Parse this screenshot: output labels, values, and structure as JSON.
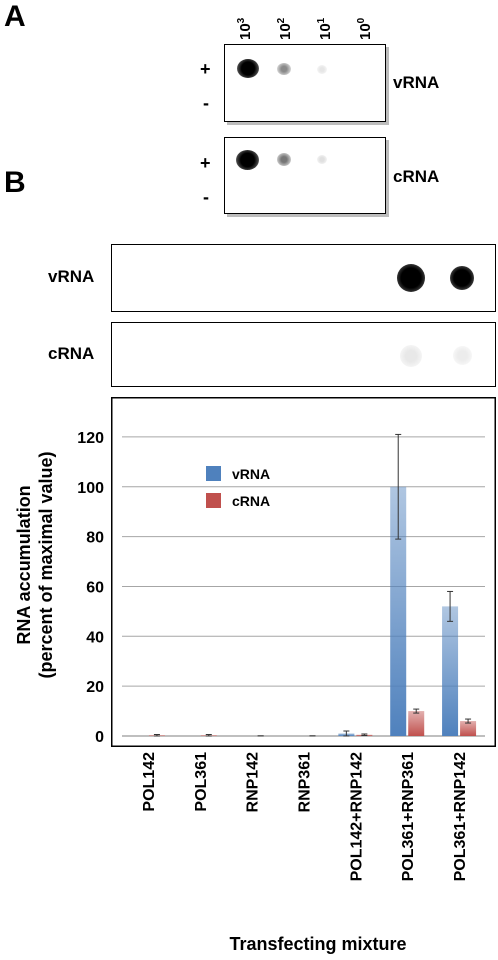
{
  "panel_a": {
    "letter": "A",
    "dilutions": [
      {
        "base": "10",
        "exp": "3"
      },
      {
        "base": "10",
        "exp": "2"
      },
      {
        "base": "10",
        "exp": "1"
      },
      {
        "base": "10",
        "exp": "0"
      }
    ],
    "plus_sign": "+",
    "minus_sign": "-",
    "blots": [
      {
        "label": "vRNA",
        "spot_intensities": [
          1.0,
          0.4,
          0.08,
          0.0
        ]
      },
      {
        "label": "cRNA",
        "spot_intensities": [
          1.0,
          0.5,
          0.1,
          0.0
        ]
      }
    ]
  },
  "panel_b": {
    "letter": "B",
    "blots": [
      {
        "label": "vRNA",
        "spot_intensities": [
          0,
          0,
          0,
          0,
          0,
          1.0,
          0.95
        ]
      },
      {
        "label": "cRNA",
        "spot_intensities": [
          0,
          0,
          0,
          0,
          0,
          0.12,
          0.08
        ]
      }
    ]
  },
  "chart_data": {
    "type": "bar",
    "title": "",
    "ylabel_line1": "RNA accumulation",
    "ylabel_line2": "(percent of maximal value)",
    "xlabel": "Transfecting mixture",
    "ylim": [
      0,
      130
    ],
    "yticks": [
      0,
      20,
      40,
      60,
      80,
      100,
      120
    ],
    "grid": true,
    "legend_position": "upper-left",
    "categories": [
      "POL142",
      "POL361",
      "RNP142",
      "RNP361",
      "POL142+RNP142",
      "POL361+RNP361",
      "POL361+RNP142"
    ],
    "series": [
      {
        "name": "vRNA",
        "color": "#4f81bd",
        "values": [
          0,
          0,
          0,
          0,
          1,
          100,
          52
        ],
        "errors": [
          0,
          0,
          0,
          0,
          1,
          21,
          6
        ]
      },
      {
        "name": "cRNA",
        "color": "#c0504d",
        "values": [
          0.3,
          0.3,
          0,
          0,
          0.5,
          10,
          6
        ],
        "errors": [
          0.3,
          0.3,
          0.1,
          0.1,
          0.3,
          0.8,
          0.8
        ]
      }
    ]
  }
}
